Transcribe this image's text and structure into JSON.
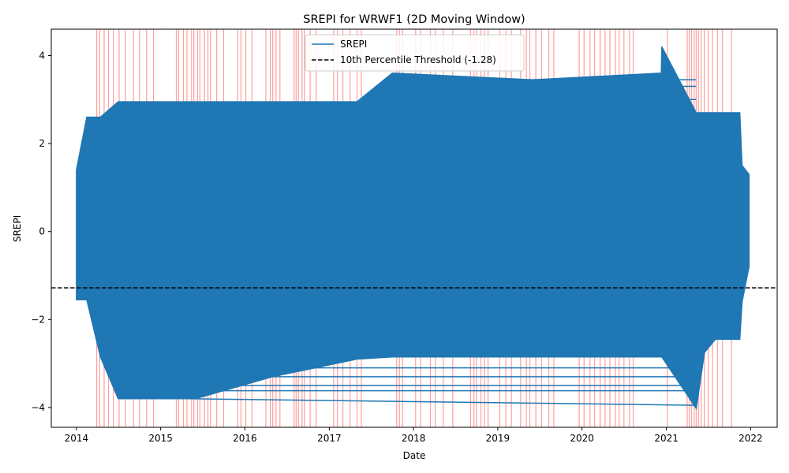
{
  "chart_data": {
    "type": "line",
    "title": "SREPI for WRWF1 (2D Moving Window)",
    "xlabel": "Date",
    "ylabel": "SREPI",
    "xlim": [
      "2013-09-14",
      "2022-04-26"
    ],
    "ylim": [
      -4.45,
      4.6
    ],
    "x_ticks": [
      "2014",
      "2015",
      "2016",
      "2017",
      "2018",
      "2019",
      "2020",
      "2021",
      "2022"
    ],
    "y_ticks": [
      "−4",
      "−2",
      "0",
      "2",
      "4"
    ],
    "grid": false,
    "legend": {
      "placement": "top-center",
      "entries": [
        "SREPI",
        "10th Percentile Threshold (-1.28)"
      ]
    },
    "series": [
      {
        "name": "SREPI",
        "color": "#1f77b4",
        "style": "solid",
        "envelope": [
          {
            "x": "2014-01-01",
            "low": -1.55,
            "high": 1.4
          },
          {
            "x": "2014-02-15",
            "low": -1.55,
            "high": 2.6
          },
          {
            "x": "2014-04-15",
            "low": -2.85,
            "high": 2.6
          },
          {
            "x": "2014-07-01",
            "low": -3.8,
            "high": 2.95
          },
          {
            "x": "2015-06-01",
            "low": -3.8,
            "high": 2.95
          },
          {
            "x": "2016-05-01",
            "low": -3.3,
            "high": 2.95
          },
          {
            "x": "2017-05-01",
            "low": -2.9,
            "high": 2.95
          },
          {
            "x": "2017-10-01",
            "low": -2.85,
            "high": 3.6
          },
          {
            "x": "2019-06-01",
            "low": -2.85,
            "high": 3.45
          },
          {
            "x": "2020-12-10",
            "low": -2.85,
            "high": 3.6
          },
          {
            "x": "2020-12-12",
            "low": -2.85,
            "high": 4.2
          },
          {
            "x": "2021-05-10",
            "low": -4.02,
            "high": 2.7
          },
          {
            "x": "2021-06-15",
            "low": -2.75,
            "high": 2.7
          },
          {
            "x": "2021-08-01",
            "low": -2.45,
            "high": 2.7
          },
          {
            "x": "2021-11-15",
            "low": -2.45,
            "high": 2.7
          },
          {
            "x": "2021-11-25",
            "low": -1.6,
            "high": 1.5
          },
          {
            "x": "2021-12-25",
            "low": -0.8,
            "high": 1.3
          }
        ]
      },
      {
        "name": "10th Percentile Threshold (-1.28)",
        "color": "#000000",
        "style": "dashed",
        "y": -1.28
      }
    ],
    "highlight_color": "#ff7f7f",
    "highlight_dates": [
      "2014-03-30",
      "2014-04-12",
      "2014-05-01",
      "2014-05-20",
      "2014-06-10",
      "2014-07-05",
      "2014-08-01",
      "2014-09-05",
      "2014-10-01",
      "2014-11-01",
      "2014-12-01",
      "2015-03-10",
      "2015-03-20",
      "2015-04-10",
      "2015-04-25",
      "2015-05-15",
      "2015-05-25",
      "2015-06-10",
      "2015-06-20",
      "2015-07-10",
      "2015-07-25",
      "2015-08-05",
      "2015-09-01",
      "2015-10-01",
      "2015-12-01",
      "2015-12-15",
      "2016-01-05",
      "2016-02-01",
      "2016-04-01",
      "2016-04-20",
      "2016-05-01",
      "2016-05-15",
      "2016-06-01",
      "2016-08-01",
      "2016-08-10",
      "2016-08-20",
      "2016-09-05",
      "2016-09-15",
      "2016-10-10",
      "2016-11-05",
      "2017-01-20",
      "2017-02-05",
      "2017-03-01",
      "2017-04-01",
      "2017-05-01",
      "2017-05-20",
      "2017-10-20",
      "2017-11-01",
      "2017-11-15",
      "2018-01-10",
      "2018-02-01",
      "2018-03-15",
      "2018-04-05",
      "2018-05-10",
      "2018-06-20",
      "2018-09-05",
      "2018-09-20",
      "2018-10-01",
      "2018-10-20",
      "2018-11-05",
      "2018-11-20",
      "2019-01-10",
      "2019-02-05",
      "2019-03-01",
      "2019-04-10",
      "2019-05-05",
      "2019-05-20",
      "2019-06-15",
      "2019-07-10",
      "2019-08-10",
      "2019-09-01",
      "2019-12-20",
      "2020-01-10",
      "2020-02-05",
      "2020-02-25",
      "2020-03-20",
      "2020-04-10",
      "2020-05-01",
      "2020-05-25",
      "2020-06-10",
      "2020-07-01",
      "2020-07-25",
      "2020-08-10",
      "2021-01-05",
      "2021-04-01",
      "2021-04-10",
      "2021-04-20",
      "2021-05-01",
      "2021-05-10",
      "2021-05-20",
      "2021-06-01",
      "2021-06-15",
      "2021-07-01",
      "2021-07-20",
      "2021-08-10",
      "2021-09-01",
      "2021-10-10"
    ]
  }
}
